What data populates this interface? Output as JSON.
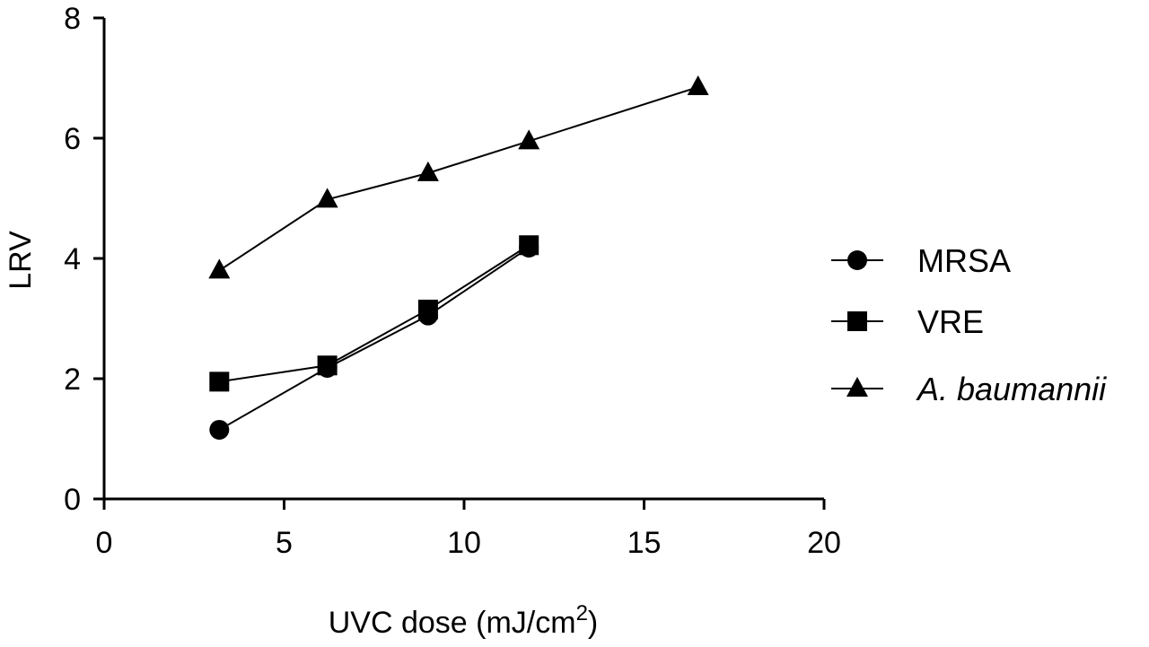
{
  "chart_data": {
    "type": "line",
    "xlabel": "UVC dose (mJ/cm",
    "xlabel_superscript": "2",
    "xlabel_suffix": ")",
    "ylabel": "LRV",
    "xlim": [
      0,
      20
    ],
    "ylim": [
      0,
      8
    ],
    "x_ticks": [
      0,
      5,
      10,
      15,
      20
    ],
    "y_ticks": [
      0,
      2,
      4,
      6,
      8
    ],
    "grid": false,
    "legend_position": "right",
    "series": [
      {
        "name": "MRSA",
        "marker": "circle",
        "italic": false,
        "x": [
          3.2,
          6.2,
          9.0,
          11.8
        ],
        "y": [
          1.15,
          2.18,
          3.05,
          4.18
        ]
      },
      {
        "name": "VRE",
        "marker": "square",
        "italic": false,
        "x": [
          3.2,
          6.2,
          9.0,
          11.8
        ],
        "y": [
          1.95,
          2.22,
          3.15,
          4.22
        ]
      },
      {
        "name": "A. baumannii",
        "marker": "triangle",
        "italic": true,
        "x": [
          3.2,
          6.2,
          9.0,
          11.8,
          16.5
        ],
        "y": [
          3.8,
          4.98,
          5.42,
          5.95,
          6.85
        ]
      }
    ]
  }
}
